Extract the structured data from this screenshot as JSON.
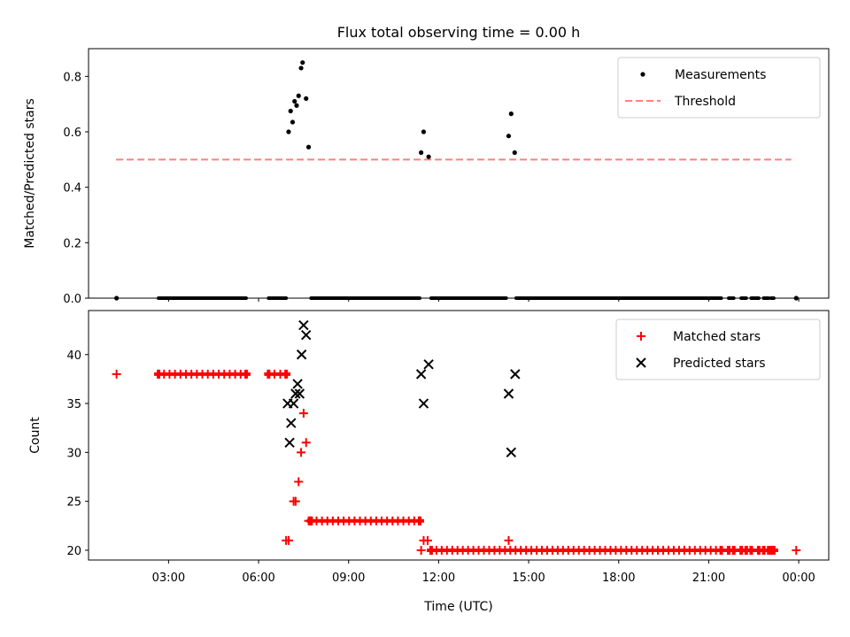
{
  "title": "Flux total observing time = 0.00 h",
  "colors": {
    "measurement": "#000000",
    "threshold": "#ff8080",
    "matched": "#ff0000",
    "predicted": "#000000"
  },
  "chart_data": [
    {
      "type": "scatter",
      "ylabel": "Matched/Predicted stars",
      "xlim": [
        "00:20",
        "25:00"
      ],
      "ylim": [
        0,
        0.9
      ],
      "yticks": [
        0.0,
        0.2,
        0.4,
        0.6,
        0.8
      ],
      "ytick_labels": [
        "0.0",
        "0.2",
        "0.4",
        "0.6",
        "0.8"
      ],
      "legend": {
        "placement": "top-right",
        "entries": [
          "Measurements",
          "Threshold"
        ]
      },
      "threshold": {
        "name": "Threshold",
        "y": 0.5,
        "x_range": [
          "01:15",
          "23:45"
        ],
        "style": "dashed"
      },
      "series": [
        {
          "name": "Measurements",
          "marker": "dot",
          "points": [
            [
              "01:16",
              0.0
            ],
            [
              "07:00",
              0.6
            ],
            [
              "07:04",
              0.675
            ],
            [
              "07:08",
              0.635
            ],
            [
              "07:12",
              0.71
            ],
            [
              "07:16",
              0.695
            ],
            [
              "07:20",
              0.73
            ],
            [
              "07:25",
              0.83
            ],
            [
              "07:28",
              0.85
            ],
            [
              "07:35",
              0.72
            ],
            [
              "07:40",
              0.545
            ],
            [
              "11:25",
              0.525
            ],
            [
              "11:30",
              0.6
            ],
            [
              "11:40",
              0.51
            ],
            [
              "14:20",
              0.585
            ],
            [
              "14:25",
              0.665
            ],
            [
              "14:32",
              0.525
            ],
            [
              "23:55",
              0.0
            ]
          ],
          "zero_runs": [
            [
              "02:40",
              "05:35"
            ],
            [
              "06:20",
              "06:55"
            ],
            [
              "07:45",
              "11:22"
            ],
            [
              "11:45",
              "14:15"
            ],
            [
              "14:35",
              "21:25"
            ],
            [
              "21:40",
              "21:50"
            ],
            [
              "22:05",
              "22:15"
            ],
            [
              "22:25",
              "22:40"
            ],
            [
              "22:50",
              "23:00"
            ],
            [
              "23:05",
              "23:10"
            ]
          ]
        }
      ]
    },
    {
      "type": "scatter",
      "xlabel": "Time (UTC)",
      "ylabel": "Count",
      "xlim": [
        "00:20",
        "25:00"
      ],
      "ylim": [
        19,
        44.5
      ],
      "yticks": [
        20,
        25,
        30,
        35,
        40
      ],
      "ytick_labels": [
        "20",
        "25",
        "30",
        "35",
        "40"
      ],
      "xtick_labels": [
        "03:00",
        "06:00",
        "09:00",
        "12:00",
        "15:00",
        "18:00",
        "21:00",
        "00:00"
      ],
      "xtick_values": [
        "03:00",
        "06:00",
        "09:00",
        "12:00",
        "15:00",
        "18:00",
        "21:00",
        "24:00"
      ],
      "legend": {
        "placement": "top-right",
        "entries": [
          "Matched stars",
          "Predicted stars"
        ]
      },
      "series": [
        {
          "name": "Matched stars",
          "marker": "plus",
          "points": [
            [
              "01:16",
              38
            ],
            [
              "06:55",
              21
            ],
            [
              "07:00",
              21
            ],
            [
              "07:10",
              25
            ],
            [
              "07:14",
              25
            ],
            [
              "07:20",
              27
            ],
            [
              "07:25",
              30
            ],
            [
              "07:30",
              34
            ],
            [
              "07:35",
              31
            ],
            [
              "07:40",
              23
            ],
            [
              "11:25",
              20
            ],
            [
              "11:30",
              21
            ],
            [
              "11:38",
              21
            ],
            [
              "14:20",
              21
            ],
            [
              "23:55",
              20
            ]
          ],
          "runs": [
            {
              "from": "02:40",
              "to": "05:35",
              "y": 38
            },
            {
              "from": "06:20",
              "to": "06:55",
              "y": 38
            },
            {
              "from": "07:45",
              "to": "11:22",
              "y": 23
            },
            {
              "from": "11:45",
              "to": "21:25",
              "y": 20
            },
            {
              "from": "21:40",
              "to": "21:50",
              "y": 20
            },
            {
              "from": "22:05",
              "to": "22:15",
              "y": 20
            },
            {
              "from": "22:25",
              "to": "22:40",
              "y": 20
            },
            {
              "from": "22:50",
              "to": "23:00",
              "y": 20
            },
            {
              "from": "23:05",
              "to": "23:10",
              "y": 20
            }
          ]
        },
        {
          "name": "Predicted stars",
          "marker": "x",
          "points": [
            [
              "06:58",
              35
            ],
            [
              "07:02",
              31
            ],
            [
              "07:05",
              33
            ],
            [
              "07:10",
              35
            ],
            [
              "07:14",
              36
            ],
            [
              "07:18",
              37
            ],
            [
              "07:22",
              36
            ],
            [
              "07:26",
              40
            ],
            [
              "07:30",
              43
            ],
            [
              "07:35",
              42
            ],
            [
              "11:25",
              38
            ],
            [
              "11:30",
              35
            ],
            [
              "11:40",
              39
            ],
            [
              "14:20",
              36
            ],
            [
              "14:25",
              30
            ],
            [
              "14:33",
              38
            ]
          ]
        }
      ]
    }
  ]
}
